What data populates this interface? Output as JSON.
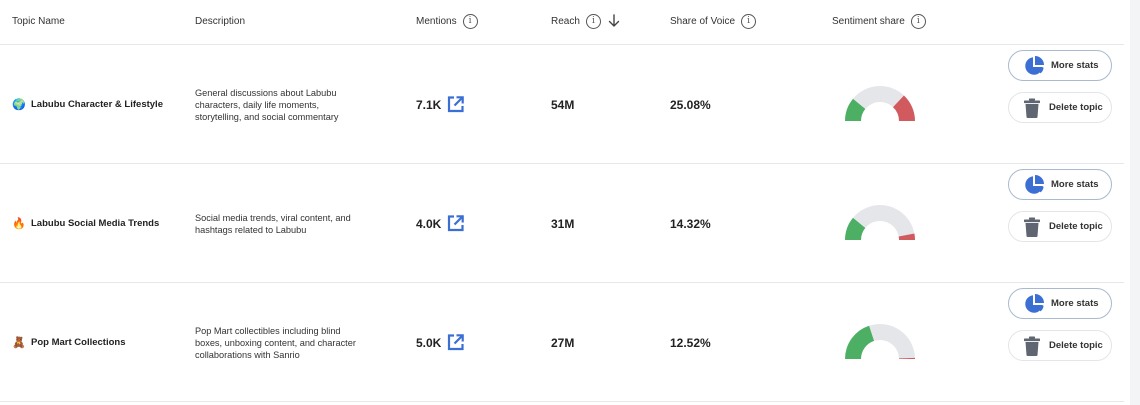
{
  "header": {
    "columns": [
      {
        "key": "topic_name",
        "label": "Topic Name",
        "info": false,
        "sort": false
      },
      {
        "key": "description",
        "label": "Description",
        "info": false,
        "sort": false
      },
      {
        "key": "mentions",
        "label": "Mentions",
        "info": true,
        "sort": false
      },
      {
        "key": "reach",
        "label": "Reach",
        "info": true,
        "sort": true,
        "sort_direction": "descending"
      },
      {
        "key": "share_of_voice",
        "label": "Share of Voice",
        "info": true,
        "sort": false
      },
      {
        "key": "sentiment_share",
        "label": "Sentiment share",
        "info": true,
        "sort": false
      }
    ],
    "info_glyph": "i"
  },
  "colors": {
    "positive": "#4caf64",
    "neutral": "#e4e6ea",
    "negative": "#d05a5e",
    "accent": "#3b6fd4",
    "trash": "#5f6672"
  },
  "rows": [
    {
      "emoji": "🌍",
      "emoji_icon": "globe-icon",
      "name": "Labubu Character & Lifestyle",
      "description": "General discussions about Labubu characters, daily life moments, storytelling, and social commentary",
      "mentions": "7.1K",
      "reach": "54M",
      "share_of_voice": "25.08%",
      "sentiment": {
        "positive": 22,
        "neutral": 52,
        "negative": 26
      },
      "actions": {
        "more_stats": "More stats",
        "delete": "Delete topic"
      }
    },
    {
      "emoji": "🔥",
      "emoji_icon": "fire-icon",
      "name": "Labubu Social Media Trends",
      "description": "Social media trends, viral content, and hashtags related to Labubu",
      "mentions": "4.0K",
      "reach": "31M",
      "share_of_voice": "14.32%",
      "sentiment": {
        "positive": 22,
        "neutral": 72,
        "negative": 6
      },
      "actions": {
        "more_stats": "More stats",
        "delete": "Delete topic"
      }
    },
    {
      "emoji": "🧸",
      "emoji_icon": "teddy-bear-icon",
      "name": "Pop Mart Collections",
      "description": "Pop Mart collectibles including blind boxes, unboxing content, and character collaborations with Sanrio",
      "mentions": "5.0K",
      "reach": "27M",
      "share_of_voice": "12.52%",
      "sentiment": {
        "positive": 40,
        "neutral": 59,
        "negative": 1
      },
      "actions": {
        "more_stats": "More stats",
        "delete": "Delete topic"
      }
    }
  ]
}
